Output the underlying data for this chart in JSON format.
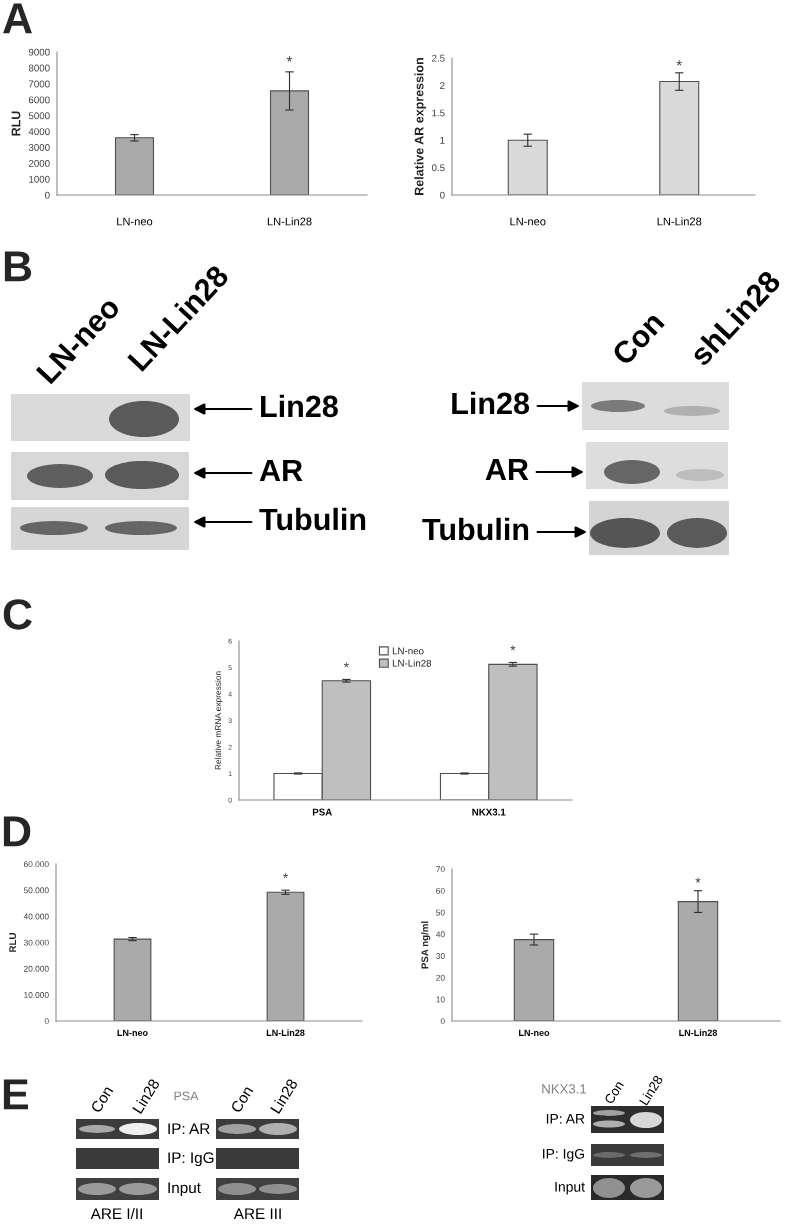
{
  "chart_data": [
    {
      "type": "bar",
      "title": "A",
      "categories": [
        "LN-neo",
        "LN-Lin28"
      ],
      "values": [
        3600,
        6550
      ],
      "errors": [
        200,
        1200
      ],
      "color": "#aaaaaa",
      "ylabel": "RLU",
      "ylim": [
        0,
        9000
      ],
      "yticks": [
        0,
        1000,
        2000,
        3000,
        4000,
        5000,
        6000,
        7000,
        8000,
        9000
      ],
      "annotations": [
        "*"
      ]
    },
    {
      "type": "bar",
      "categories": [
        "LN-neo",
        "LN-Lin28"
      ],
      "values": [
        1,
        2.07
      ],
      "errors": [
        0.11,
        0.16
      ],
      "color": "#d9d9d9",
      "ylabel": "Relative AR expression",
      "ylim": [
        0,
        2.5
      ],
      "yticks": [
        0,
        0.5,
        1,
        1.5,
        2,
        2.5
      ],
      "annotations": [
        "*"
      ]
    },
    {
      "type": "other",
      "title": "B",
      "annotations": [
        "LN-neo",
        "LN-Lin28",
        "Lin28",
        "AR",
        "Tubulin",
        "Con",
        "shLin28",
        "Lin28",
        "AR",
        "Tubulin"
      ]
    },
    {
      "type": "bar",
      "title": "C",
      "categories": [
        "PSA",
        "NKX3.1"
      ],
      "series": [
        {
          "name": "LN-neo",
          "color": "#ffffff",
          "values": [
            1,
            1
          ],
          "errors": [
            0.02,
            0.02
          ]
        },
        {
          "name": "LN-Lin28",
          "color": "#bfbfbf",
          "values": [
            4.5,
            5.12
          ],
          "errors": [
            0.05,
            0.07
          ]
        }
      ],
      "ylabel": "Relative mRNA expression",
      "ylim": [
        0,
        6
      ],
      "yticks": [
        0,
        1,
        2,
        3,
        4,
        5,
        6
      ],
      "legend": "top",
      "annotations": [
        "*",
        "*"
      ]
    },
    {
      "type": "bar",
      "title": "D",
      "categories": [
        "LN-neo",
        "LN-Lin28"
      ],
      "values": [
        31.3,
        49.2
      ],
      "errors": [
        0.6,
        0.8
      ],
      "color": "#aaaaaa",
      "ylabel": "RLU",
      "ylim": [
        0,
        60
      ],
      "yticks": [
        0,
        {
          "value": 10,
          "label": "10.000"
        },
        {
          "value": 20,
          "label": "20.000"
        },
        {
          "value": 30,
          "label": "30.000"
        },
        {
          "value": 40,
          "label": "40.000"
        },
        {
          "value": 50,
          "label": "50.000"
        },
        {
          "value": 60,
          "label": "60.000"
        }
      ],
      "annotations": [
        "*"
      ]
    },
    {
      "type": "bar",
      "categories": [
        "LN-neo",
        "LN-Lin28"
      ],
      "values": [
        37.5,
        55
      ],
      "errors": [
        2.5,
        5
      ],
      "color": "#aaaaaa",
      "ylabel": "PSA ng/ml",
      "ylim": [
        0,
        70
      ],
      "yticks": [
        0,
        10,
        20,
        30,
        40,
        50,
        60,
        70
      ],
      "annotations": [
        "*"
      ]
    },
    {
      "type": "other",
      "title": "E",
      "annotations": [
        "Con",
        "Lin28",
        "PSA",
        "Con",
        "Lin28",
        "IP: AR",
        "IP: IgG",
        "Input",
        "ARE I/II",
        "ARE III",
        "NKX3.1",
        "Con",
        "Lin28",
        "IP: AR",
        "IP: IgG",
        "Input"
      ]
    }
  ]
}
